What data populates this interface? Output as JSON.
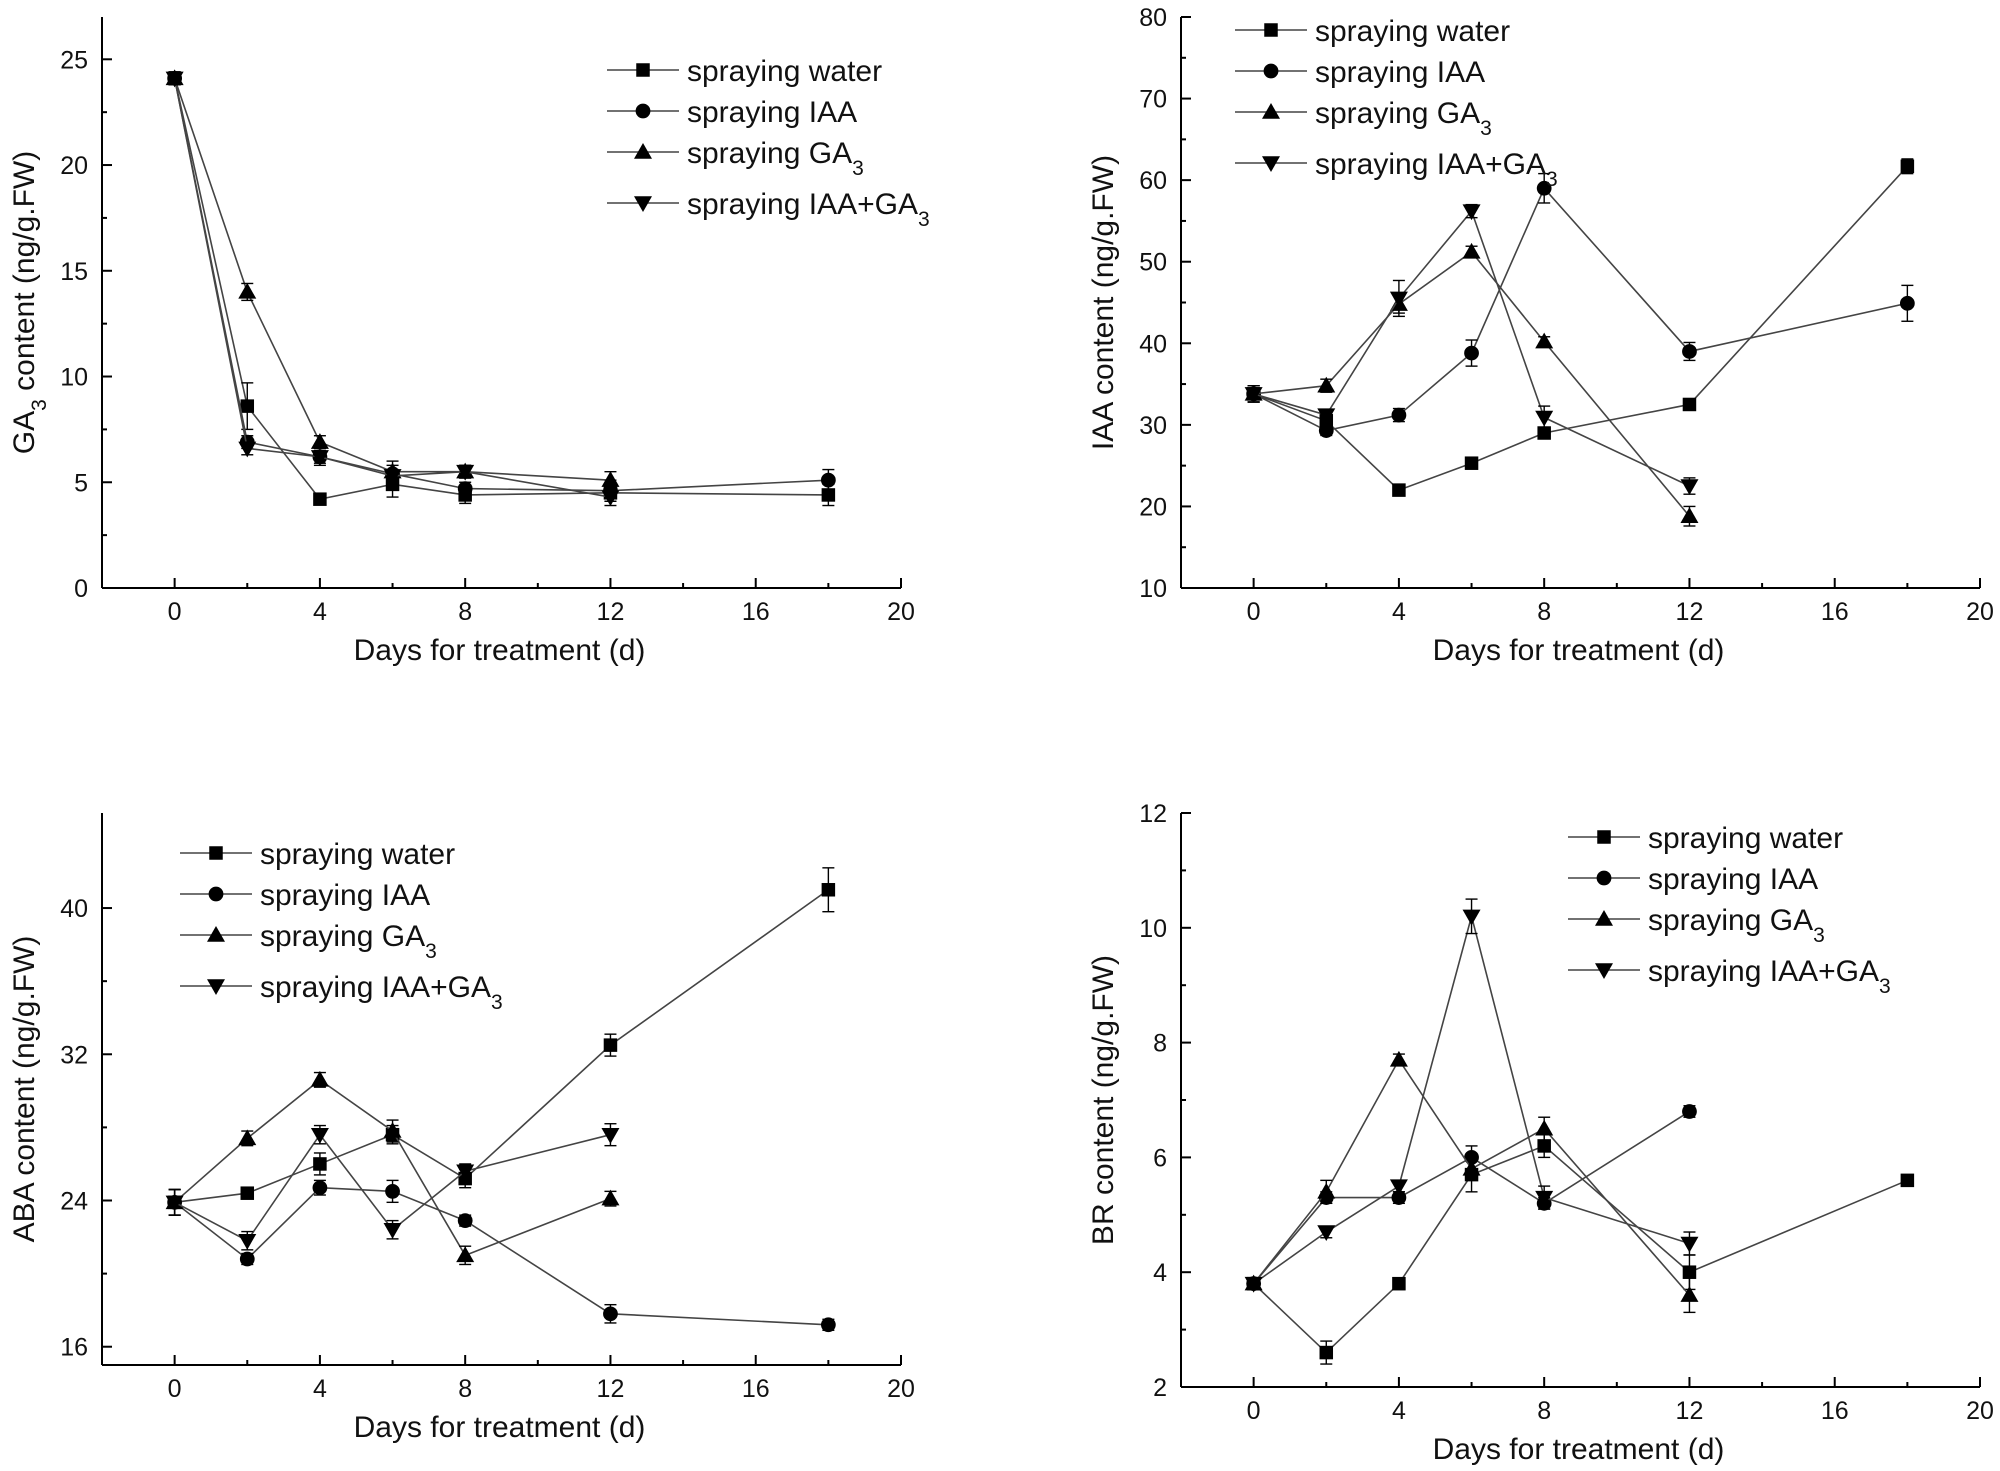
{
  "chart_data": [
    {
      "type": "line",
      "panel": "top-left",
      "title": "",
      "xlabel": "Days for treatment (d)",
      "ylabel_main": "GA",
      "ylabel_sub": "3",
      "ylabel_rest": " content (ng/g.FW)",
      "xlim": [
        -2,
        20
      ],
      "ylim": [
        0,
        27
      ],
      "xticks": [
        0,
        4,
        8,
        12,
        16,
        20
      ],
      "yticks": [
        0,
        5,
        10,
        15,
        20,
        25
      ],
      "legend_position": "top-right",
      "series": [
        {
          "name": "spraying water",
          "label": "spraying water",
          "label_sub": "",
          "marker": "square",
          "x": [
            0,
            2,
            4,
            6,
            8,
            12,
            18
          ],
          "y": [
            24.1,
            8.6,
            4.2,
            4.9,
            4.4,
            4.5,
            4.4
          ],
          "err": [
            0.3,
            1.1,
            0.2,
            0.6,
            0.4,
            0.4,
            0.5
          ]
        },
        {
          "name": "spraying IAA",
          "label": "spraying IAA",
          "label_sub": "",
          "marker": "circle",
          "x": [
            0,
            2,
            4,
            6,
            8,
            12,
            18
          ],
          "y": [
            24.1,
            6.9,
            6.2,
            5.4,
            4.7,
            4.6,
            5.1
          ],
          "err": [
            0.3,
            0.3,
            0.4,
            0.4,
            0.3,
            0.5,
            0.5
          ]
        },
        {
          "name": "spraying GA3",
          "label": "spraying GA",
          "label_sub": "3",
          "marker": "triangle-up",
          "x": [
            0,
            2,
            4,
            6,
            8,
            12
          ],
          "y": [
            24.1,
            14.0,
            6.9,
            5.5,
            5.5,
            5.1
          ],
          "err": [
            0.3,
            0.4,
            0.3,
            0.5,
            0.3,
            0.4
          ]
        },
        {
          "name": "spraying IAA+GA3",
          "label": "spraying IAA+GA",
          "label_sub": "3",
          "marker": "triangle-down",
          "x": [
            0,
            2,
            4,
            6,
            8,
            12
          ],
          "y": [
            24.1,
            6.6,
            6.2,
            5.3,
            5.5,
            4.3
          ],
          "err": [
            0.3,
            0.3,
            0.3,
            0.3,
            0.3,
            0.4
          ]
        }
      ]
    },
    {
      "type": "line",
      "panel": "top-right",
      "title": "",
      "xlabel": "Days for treatment (d)",
      "ylabel_main": "IAA content (ng/g.FW)",
      "ylabel_sub": "",
      "ylabel_rest": "",
      "xlim": [
        -2,
        20
      ],
      "ylim": [
        10,
        80
      ],
      "xticks": [
        0,
        4,
        8,
        12,
        16,
        20
      ],
      "yticks": [
        10,
        20,
        30,
        40,
        50,
        60,
        70,
        80
      ],
      "legend_position": "top-left",
      "series": [
        {
          "name": "spraying water",
          "label": "spraying water",
          "label_sub": "",
          "marker": "square",
          "x": [
            0,
            2,
            4,
            6,
            8,
            12,
            18
          ],
          "y": [
            33.8,
            30.5,
            22.0,
            25.3,
            29.0,
            32.5,
            61.7
          ],
          "err": [
            1.0,
            0.8,
            0.6,
            0.5,
            0.6,
            0.5,
            0.9
          ]
        },
        {
          "name": "spraying IAA",
          "label": "spraying IAA",
          "label_sub": "",
          "marker": "circle",
          "x": [
            0,
            2,
            4,
            6,
            8,
            12,
            18
          ],
          "y": [
            33.8,
            29.3,
            31.2,
            38.8,
            59.0,
            39.0,
            44.9
          ],
          "err": [
            1.0,
            0.6,
            0.8,
            1.6,
            1.8,
            1.1,
            2.2
          ]
        },
        {
          "name": "spraying GA3",
          "label": "spraying GA",
          "label_sub": "3",
          "marker": "triangle-up",
          "x": [
            0,
            2,
            4,
            6,
            8,
            12
          ],
          "y": [
            33.8,
            34.8,
            44.8,
            51.2,
            40.2,
            18.8
          ],
          "err": [
            1.0,
            0.8,
            1.1,
            0.7,
            0.6,
            1.2
          ]
        },
        {
          "name": "spraying IAA+GA3",
          "label": "spraying IAA+GA",
          "label_sub": "3",
          "marker": "triangle-down",
          "x": [
            0,
            2,
            4,
            6,
            8,
            12
          ],
          "y": [
            33.8,
            31.2,
            45.5,
            56.2,
            30.9,
            22.5
          ],
          "err": [
            1.0,
            0.6,
            2.2,
            0.8,
            1.4,
            1.0
          ]
        }
      ]
    },
    {
      "type": "line",
      "panel": "bottom-left",
      "title": "",
      "xlabel": "Days for treatment (d)",
      "ylabel_main": "ABA content (ng/g.FW)",
      "ylabel_sub": "",
      "ylabel_rest": "",
      "xlim": [
        -2,
        20
      ],
      "ylim": [
        15,
        45.2
      ],
      "xticks": [
        0,
        4,
        8,
        12,
        16,
        20
      ],
      "yticks": [
        16,
        24,
        32,
        40
      ],
      "legend_position": "top-left",
      "series": [
        {
          "name": "spraying water",
          "label": "spraying water",
          "label_sub": "",
          "marker": "square",
          "x": [
            0,
            2,
            4,
            6,
            8,
            12,
            18
          ],
          "y": [
            23.9,
            24.4,
            26.0,
            27.6,
            25.2,
            32.5,
            41.0
          ],
          "err": [
            0.7,
            0.3,
            0.6,
            0.5,
            0.5,
            0.6,
            1.2
          ]
        },
        {
          "name": "spraying IAA",
          "label": "spraying IAA",
          "label_sub": "",
          "marker": "circle",
          "x": [
            0,
            2,
            4,
            6,
            8,
            12,
            18
          ],
          "y": [
            23.9,
            20.8,
            24.7,
            24.5,
            22.9,
            17.8,
            17.2
          ],
          "err": [
            0.7,
            0.3,
            0.4,
            0.6,
            0.3,
            0.5,
            0.3
          ]
        },
        {
          "name": "spraying GA3",
          "label": "spraying GA",
          "label_sub": "3",
          "marker": "triangle-up",
          "x": [
            0,
            2,
            4,
            6,
            8,
            12
          ],
          "y": [
            23.9,
            27.4,
            30.6,
            27.8,
            21.0,
            24.1
          ],
          "err": [
            0.7,
            0.4,
            0.4,
            0.6,
            0.5,
            0.4
          ]
        },
        {
          "name": "spraying IAA+GA3",
          "label": "spraying IAA+GA",
          "label_sub": "3",
          "marker": "triangle-down",
          "x": [
            0,
            2,
            4,
            6,
            8,
            12
          ],
          "y": [
            23.9,
            21.8,
            27.6,
            22.4,
            25.6,
            27.6
          ],
          "err": [
            0.7,
            0.5,
            0.5,
            0.5,
            0.4,
            0.6
          ]
        }
      ]
    },
    {
      "type": "line",
      "panel": "bottom-right",
      "title": "",
      "xlabel": "Days for treatment (d)",
      "ylabel_main": "BR content (ng/g.FW)",
      "ylabel_sub": "",
      "ylabel_rest": "",
      "xlim": [
        -2,
        20
      ],
      "ylim": [
        2,
        12
      ],
      "xticks": [
        0,
        4,
        8,
        12,
        16,
        20
      ],
      "yticks": [
        2,
        4,
        6,
        8,
        10,
        12
      ],
      "legend_position": "top-right",
      "series": [
        {
          "name": "spraying water",
          "label": "spraying water",
          "label_sub": "",
          "marker": "square",
          "x": [
            0,
            2,
            4,
            6,
            8,
            12,
            18
          ],
          "y": [
            3.8,
            2.6,
            3.8,
            5.7,
            6.2,
            4.0,
            5.6
          ],
          "err": [
            0.1,
            0.2,
            0.1,
            0.3,
            0.2,
            0.3,
            0.1
          ]
        },
        {
          "name": "spraying IAA",
          "label": "spraying IAA",
          "label_sub": "",
          "marker": "circle",
          "x": [
            0,
            2,
            4,
            6,
            8,
            12
          ],
          "y": [
            3.8,
            5.3,
            5.3,
            6.0,
            5.2,
            6.8
          ],
          "err": [
            0.1,
            0.1,
            0.1,
            0.2,
            0.1,
            0.1
          ]
        },
        {
          "name": "spraying GA3",
          "label": "spraying GA",
          "label_sub": "3",
          "marker": "triangle-up",
          "x": [
            0,
            2,
            4,
            6,
            8,
            12
          ],
          "y": [
            3.8,
            5.4,
            7.7,
            5.8,
            6.5,
            3.6
          ],
          "err": [
            0.1,
            0.2,
            0.1,
            0.2,
            0.2,
            0.3
          ]
        },
        {
          "name": "spraying IAA+GA3",
          "label": "spraying IAA+GA",
          "label_sub": "3",
          "marker": "triangle-down",
          "x": [
            0,
            2,
            4,
            6,
            8,
            12
          ],
          "y": [
            3.8,
            4.7,
            5.5,
            10.2,
            5.3,
            4.5
          ],
          "err": [
            0.1,
            0.1,
            0.1,
            0.3,
            0.2,
            0.2
          ]
        }
      ]
    }
  ]
}
